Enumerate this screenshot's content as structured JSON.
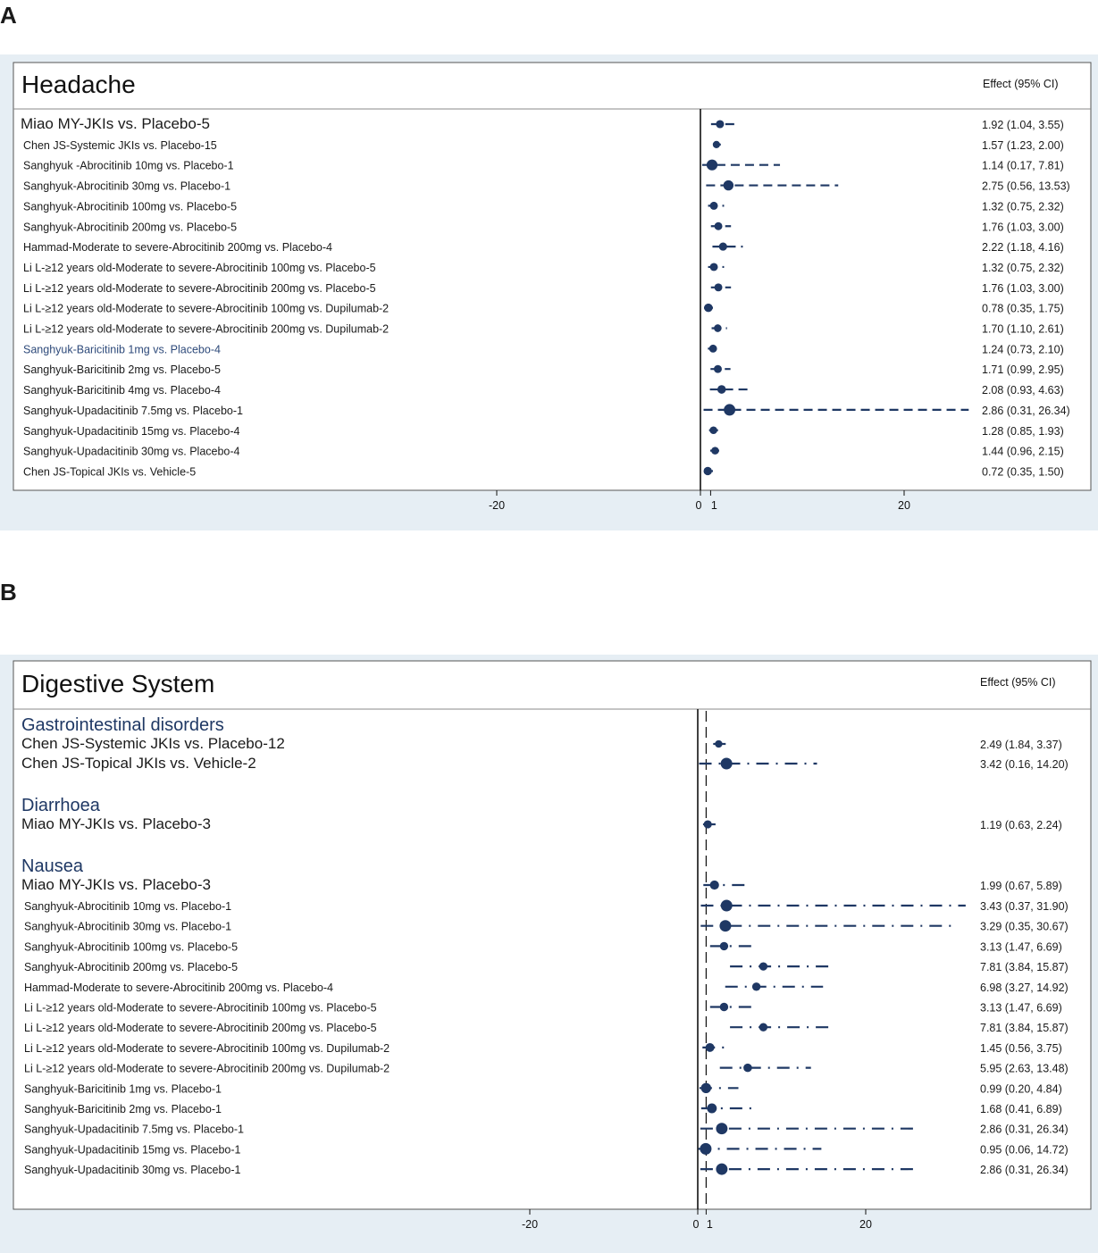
{
  "panels": [
    {
      "letter": "A",
      "chart_data": {
        "type": "forest",
        "title": "Headache",
        "effect_header": "Effect (95% CI)",
        "xticks": [
          -20,
          0,
          1,
          20
        ],
        "groups": [
          {
            "label": "",
            "rows": [
              {
                "label": "Miao MY-JKIs vs. Placebo-5",
                "effect": 1.92,
                "lo": 1.04,
                "hi": 3.55,
                "text": "1.92 (1.04, 3.55)"
              },
              {
                "label": "Chen JS-Systemic JKIs vs. Placebo-15",
                "effect": 1.57,
                "lo": 1.23,
                "hi": 2.0,
                "text": "1.57 (1.23, 2.00)"
              },
              {
                "label": "Sanghyuk -Abrocitinib 10mg vs. Placebo-1",
                "effect": 1.14,
                "lo": 0.17,
                "hi": 7.81,
                "text": "1.14 (0.17, 7.81)"
              },
              {
                "label": "Sanghyuk-Abrocitinib 30mg vs. Placebo-1",
                "effect": 2.75,
                "lo": 0.56,
                "hi": 13.53,
                "text": "2.75 (0.56, 13.53)"
              },
              {
                "label": "Sanghyuk-Abrocitinib 100mg vs. Placebo-5",
                "effect": 1.32,
                "lo": 0.75,
                "hi": 2.32,
                "text": "1.32 (0.75, 2.32)"
              },
              {
                "label": "Sanghyuk-Abrocitinib 200mg vs. Placebo-5",
                "effect": 1.76,
                "lo": 1.03,
                "hi": 3.0,
                "text": "1.76 (1.03, 3.00)"
              },
              {
                "label": "Hammad-Moderate to severe-Abrocitinib 200mg vs. Placebo-4",
                "effect": 2.22,
                "lo": 1.18,
                "hi": 4.16,
                "text": "2.22 (1.18, 4.16)"
              },
              {
                "label": "Li L-≥12 years old-Moderate to severe-Abrocitinib 100mg vs. Placebo-5",
                "effect": 1.32,
                "lo": 0.75,
                "hi": 2.32,
                "text": "1.32 (0.75, 2.32)"
              },
              {
                "label": "Li L-≥12 years old-Moderate to severe-Abrocitinib 200mg vs. Placebo-5",
                "effect": 1.76,
                "lo": 1.03,
                "hi": 3.0,
                "text": "1.76 (1.03, 3.00)"
              },
              {
                "label": "Li L-≥12 years old-Moderate to severe-Abrocitinib 100mg vs. Dupilumab-2",
                "effect": 0.78,
                "lo": 0.35,
                "hi": 1.75,
                "text": "0.78 (0.35, 1.75)"
              },
              {
                "label": "Li L-≥12 years old-Moderate to severe-Abrocitinib 200mg vs. Dupilumab-2",
                "effect": 1.7,
                "lo": 1.1,
                "hi": 2.61,
                "text": "1.70 (1.10, 2.61)"
              },
              {
                "label": "Sanghyuk-Baricitinib 1mg vs. Placebo-4",
                "effect": 1.24,
                "lo": 0.73,
                "hi": 2.1,
                "text": "1.24 (0.73, 2.10)",
                "highlight": true
              },
              {
                "label": "Sanghyuk-Baricitinib 2mg vs. Placebo-5",
                "effect": 1.71,
                "lo": 0.99,
                "hi": 2.95,
                "text": "1.71 (0.99, 2.95)"
              },
              {
                "label": "Sanghyuk-Baricitinib 4mg vs. Placebo-4",
                "effect": 2.08,
                "lo": 0.93,
                "hi": 4.63,
                "text": "2.08 (0.93, 4.63)"
              },
              {
                "label": "Sanghyuk-Upadacitinib 7.5mg vs. Placebo-1",
                "effect": 2.86,
                "lo": 0.31,
                "hi": 26.34,
                "text": "2.86 (0.31, 26.34)"
              },
              {
                "label": "Sanghyuk-Upadacitinib 15mg vs. Placebo-4",
                "effect": 1.28,
                "lo": 0.85,
                "hi": 1.93,
                "text": "1.28 (0.85, 1.93)"
              },
              {
                "label": "Sanghyuk-Upadacitinib 30mg vs. Placebo-4",
                "effect": 1.44,
                "lo": 0.96,
                "hi": 2.15,
                "text": "1.44 (0.96, 2.15)"
              },
              {
                "label": "Chen JS-Topical JKIs vs. Vehicle-5",
                "effect": 0.72,
                "lo": 0.35,
                "hi": 1.5,
                "text": "0.72 (0.35, 1.50)"
              }
            ]
          }
        ]
      }
    },
    {
      "letter": "B",
      "chart_data": {
        "type": "forest",
        "title": "Digestive System",
        "effect_header": "Effect (95% CI)",
        "xticks": [
          -20,
          0,
          1,
          20
        ],
        "groups": [
          {
            "label": "Gastrointestinal disorders",
            "rows": [
              {
                "label": "Chen JS-Systemic JKIs vs. Placebo-12",
                "effect": 2.49,
                "lo": 1.84,
                "hi": 3.37,
                "text": "2.49 (1.84, 3.37)"
              },
              {
                "label": "Chen JS-Topical JKIs vs. Vehicle-2",
                "effect": 3.42,
                "lo": 0.16,
                "hi": 14.2,
                "text": "3.42 (0.16, 14.20)"
              }
            ]
          },
          {
            "label": "Diarrhoea",
            "rows": [
              {
                "label": "Miao MY-JKIs vs. Placebo-3",
                "effect": 1.19,
                "lo": 0.63,
                "hi": 2.24,
                "text": "1.19 (0.63, 2.24)"
              }
            ]
          },
          {
            "label": "Nausea",
            "rows": [
              {
                "label": "Miao MY-JKIs vs. Placebo-3",
                "effect": 1.99,
                "lo": 0.67,
                "hi": 5.89,
                "text": "1.99 (0.67, 5.89)"
              },
              {
                "label": "Sanghyuk-Abrocitinib 10mg vs. Placebo-1",
                "effect": 3.43,
                "lo": 0.37,
                "hi": 31.9,
                "text": "3.43 (0.37, 31.90)"
              },
              {
                "label": "Sanghyuk-Abrocitinib 30mg vs. Placebo-1",
                "effect": 3.29,
                "lo": 0.35,
                "hi": 30.67,
                "text": "3.29 (0.35, 30.67)"
              },
              {
                "label": "Sanghyuk-Abrocitinib 100mg vs. Placebo-5",
                "effect": 3.13,
                "lo": 1.47,
                "hi": 6.69,
                "text": "3.13 (1.47, 6.69)"
              },
              {
                "label": "Sanghyuk-Abrocitinib 200mg vs. Placebo-5",
                "effect": 7.81,
                "lo": 3.84,
                "hi": 15.87,
                "text": "7.81 (3.84, 15.87)"
              },
              {
                "label": "Hammad-Moderate to severe-Abrocitinib 200mg vs. Placebo-4",
                "effect": 6.98,
                "lo": 3.27,
                "hi": 14.92,
                "text": "6.98 (3.27, 14.92)"
              },
              {
                "label": "Li L-≥12 years old-Moderate to severe-Abrocitinib 100mg vs. Placebo-5",
                "effect": 3.13,
                "lo": 1.47,
                "hi": 6.69,
                "text": "3.13 (1.47, 6.69)"
              },
              {
                "label": "Li L-≥12 years old-Moderate to severe-Abrocitinib 200mg vs. Placebo-5",
                "effect": 7.81,
                "lo": 3.84,
                "hi": 15.87,
                "text": "7.81 (3.84, 15.87)"
              },
              {
                "label": "Li L-≥12 years old-Moderate to severe-Abrocitinib 100mg vs. Dupilumab-2",
                "effect": 1.45,
                "lo": 0.56,
                "hi": 3.75,
                "text": "1.45 (0.56, 3.75)"
              },
              {
                "label": "Li L-≥12 years old-Moderate to severe-Abrocitinib 200mg vs. Dupilumab-2",
                "effect": 5.95,
                "lo": 2.63,
                "hi": 13.48,
                "text": "5.95 (2.63, 13.48)"
              },
              {
                "label": "Sanghyuk-Baricitinib 1mg vs. Placebo-1",
                "effect": 0.99,
                "lo": 0.2,
                "hi": 4.84,
                "text": "0.99 (0.20, 4.84)"
              },
              {
                "label": "Sanghyuk-Baricitinib 2mg vs. Placebo-1",
                "effect": 1.68,
                "lo": 0.41,
                "hi": 6.89,
                "text": "1.68 (0.41, 6.89)"
              },
              {
                "label": "Sanghyuk-Upadacitinib 7.5mg vs. Placebo-1",
                "effect": 2.86,
                "lo": 0.31,
                "hi": 26.34,
                "text": "2.86 (0.31, 26.34)"
              },
              {
                "label": "Sanghyuk-Upadacitinib 15mg vs. Placebo-1",
                "effect": 0.95,
                "lo": 0.06,
                "hi": 14.72,
                "text": "0.95 (0.06, 14.72)"
              },
              {
                "label": "Sanghyuk-Upadacitinib 30mg vs. Placebo-1",
                "effect": 2.86,
                "lo": 0.31,
                "hi": 26.34,
                "text": "2.86 (0.31, 26.34)"
              }
            ]
          }
        ]
      }
    }
  ],
  "colors": {
    "marker": "#1f3864",
    "group_header": "#1f3864",
    "highlight_text": "#2e4a7a",
    "panel_bg": "#e6eef4",
    "text": "#1a1a1a"
  }
}
